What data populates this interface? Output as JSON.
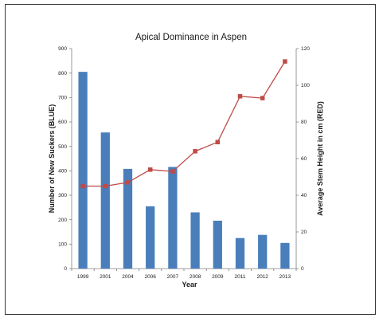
{
  "chart_data": {
    "type": "bar+line",
    "title": "Apical Dominance in Aspen",
    "xlabel": "Year",
    "ylabel_left": "Number of New Suckers (BLUE)",
    "ylabel_right": "Average Stem Height in cm (RED)",
    "categories": [
      "1999",
      "2001",
      "2004",
      "2006",
      "2007",
      "2008",
      "2009",
      "2011",
      "2012",
      "2013"
    ],
    "ylim_left": [
      0,
      900
    ],
    "ylim_right": [
      0,
      120
    ],
    "yticks_left": [
      "0",
      "100",
      "200",
      "300",
      "400",
      "500",
      "600",
      "700",
      "800",
      "900"
    ],
    "yticks_right": [
      "0",
      "20",
      "40",
      "60",
      "80",
      "100",
      "120"
    ],
    "grid": false,
    "series": [
      {
        "type": "bar",
        "axis": "left",
        "values": [
          805,
          557,
          408,
          255,
          416,
          230,
          196,
          125,
          138,
          105
        ],
        "color": "#4a7ebb"
      },
      {
        "type": "line",
        "axis": "right",
        "values": [
          45,
          45,
          47,
          54,
          53,
          64,
          69,
          94,
          93,
          113
        ],
        "color": "#be4b48"
      }
    ]
  }
}
